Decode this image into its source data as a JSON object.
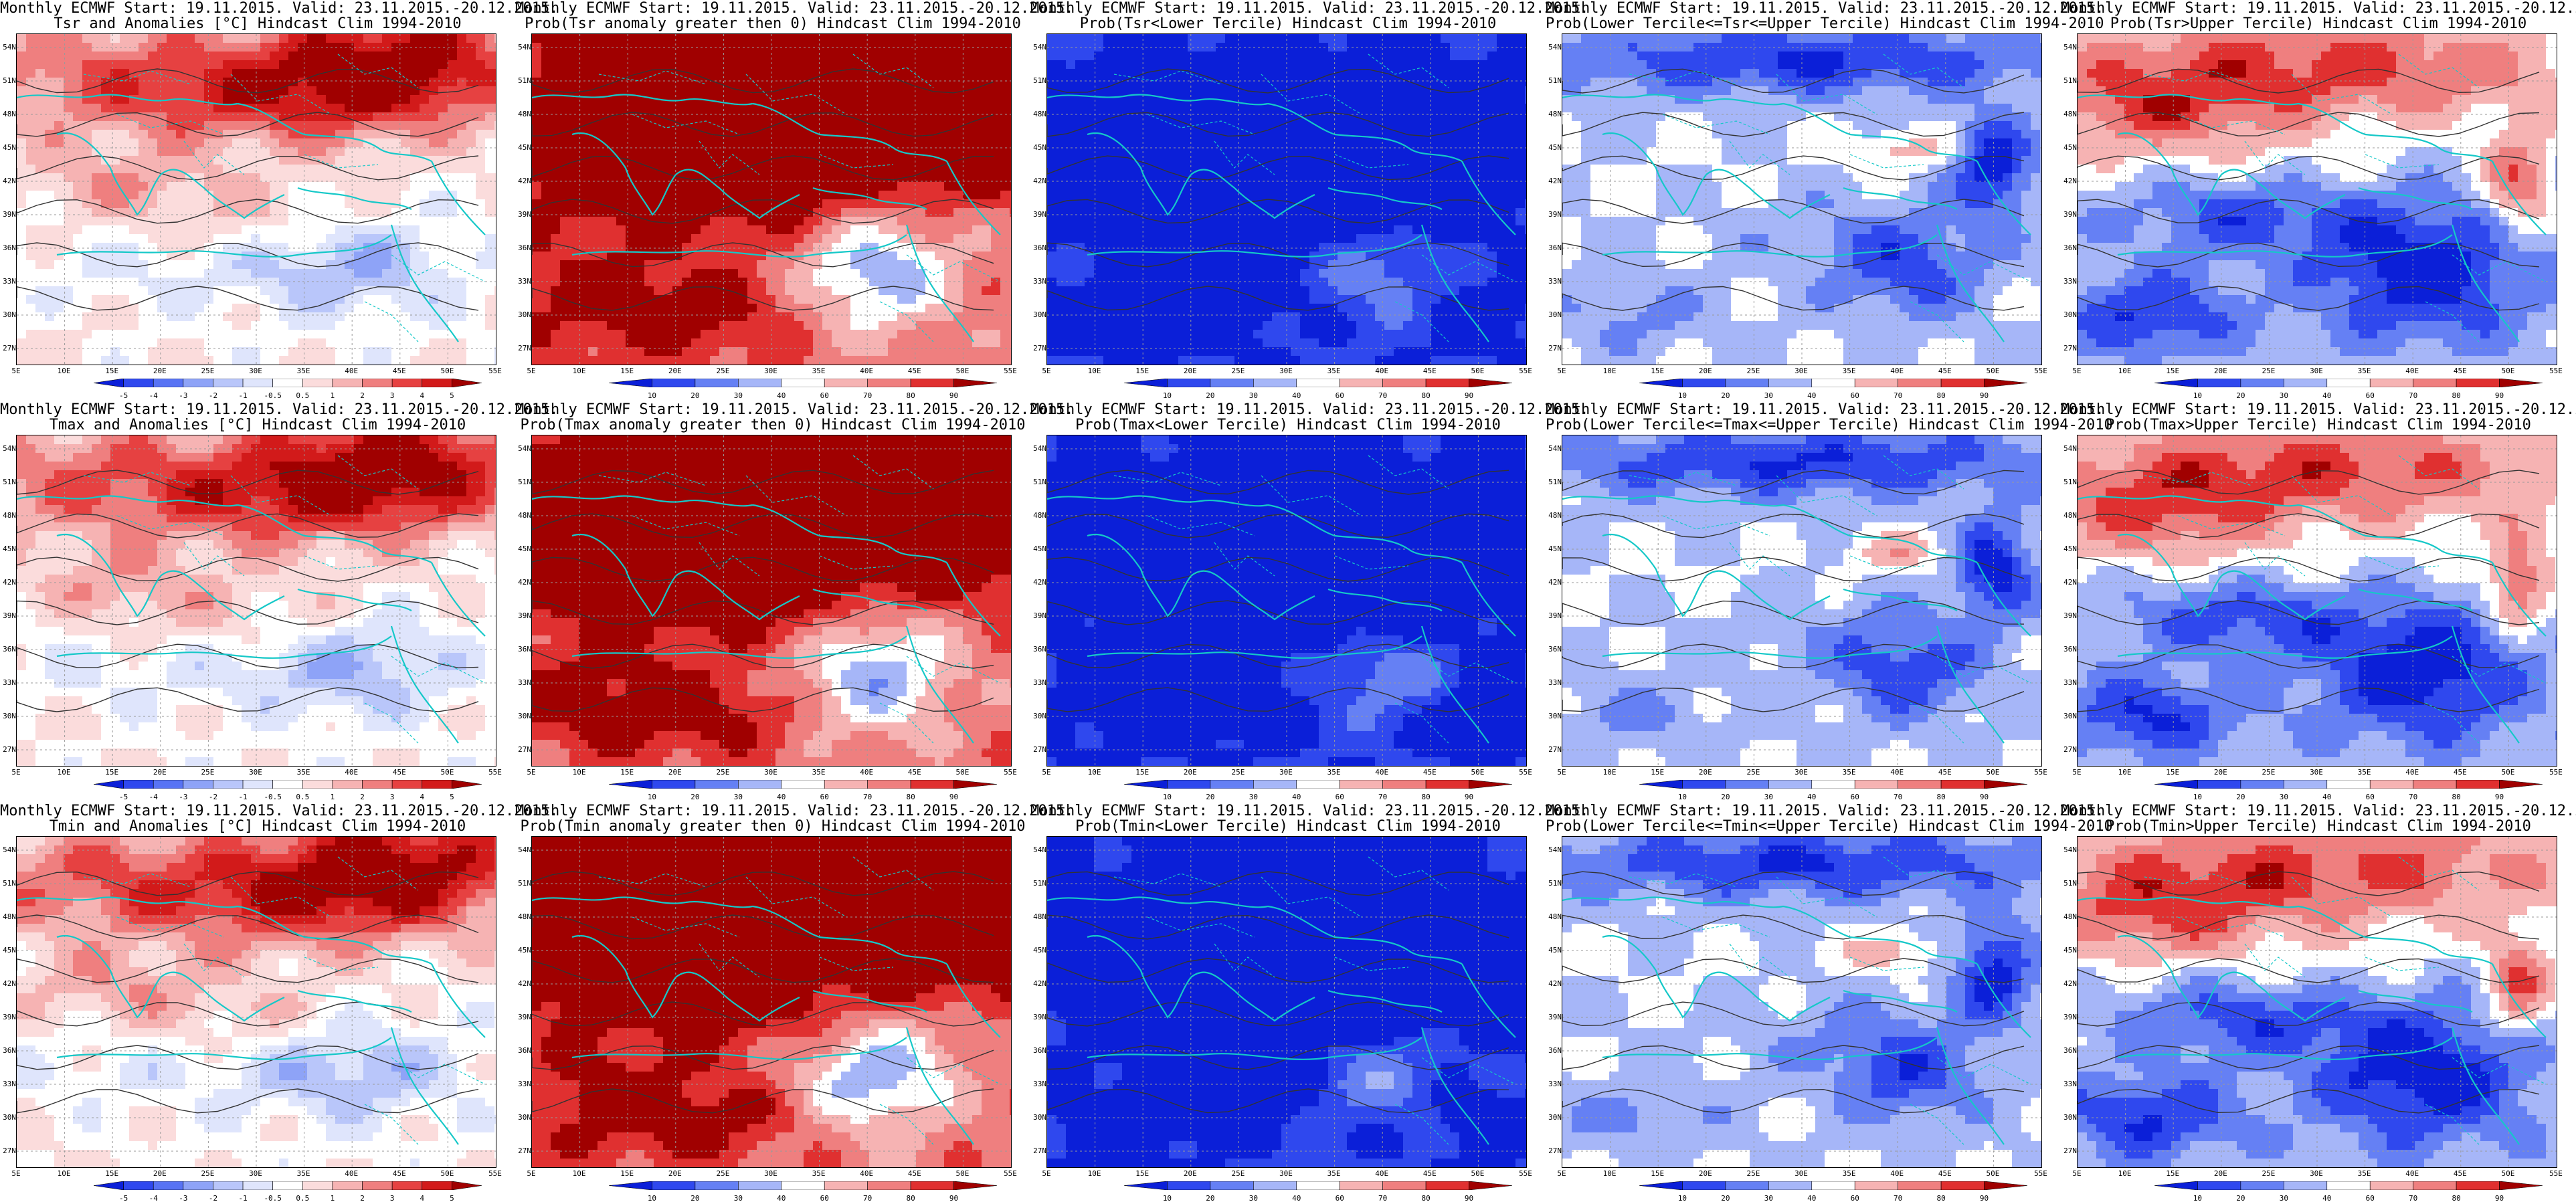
{
  "common": {
    "header": "Monthly ECMWF Start: 19.11.2015. Valid: 23.11.2015.-20.12.2015.",
    "lat_labels": [
      "54N",
      "51N",
      "48N",
      "45N",
      "42N",
      "39N",
      "36N",
      "33N",
      "30N",
      "27N"
    ],
    "lon_labels": [
      "5E",
      "10E",
      "15E",
      "20E",
      "25E",
      "30E",
      "35E",
      "40E",
      "45E",
      "50E",
      "55E"
    ]
  },
  "scales": {
    "anom": {
      "labels": [
        "-5",
        "-4",
        "-3",
        "-2",
        "-1",
        "-0.5",
        "0.5",
        "1",
        "2",
        "3",
        "4",
        "5"
      ],
      "colors": [
        "#0b1fd8",
        "#2f48ee",
        "#5873f4",
        "#8ea3f7",
        "#b9c6fa",
        "#dfe5fc",
        "#ffffff",
        "#fbdcdc",
        "#f6b3b3",
        "#ef7f7f",
        "#e64141",
        "#d21a1a",
        "#a00000"
      ]
    },
    "prob": {
      "labels": [
        "10",
        "20",
        "30",
        "40",
        "60",
        "70",
        "80",
        "90"
      ],
      "colors": [
        "#0b1fd8",
        "#2f48ee",
        "#6580f4",
        "#a6b6f8",
        "#ffffff",
        "#f6b3b3",
        "#ef7f7f",
        "#e03030",
        "#a00000"
      ]
    }
  },
  "panels": [
    {
      "line2": "Tsr and Anomalies [°C] Hindcast Clim 1994-2010",
      "scale": "anom",
      "pattern": "anom"
    },
    {
      "line2": "Prob(Tsr anomaly greater then 0) Hindcast Clim 1994-2010",
      "scale": "prob",
      "pattern": "hot"
    },
    {
      "line2": "Prob(Tsr<Lower Tercile) Hindcast Clim 1994-2010",
      "scale": "prob",
      "pattern": "cold"
    },
    {
      "line2": "Prob(Lower Tercile<=Tsr<=Upper Tercile) Hindcast Clim 1994-2010",
      "scale": "prob",
      "pattern": "mid"
    },
    {
      "line2": "Prob(Tsr>Upper Tercile) Hindcast Clim 1994-2010",
      "scale": "prob",
      "pattern": "upper"
    },
    {
      "line2": "Tmax and Anomalies [°C] Hindcast Clim 1994-2010",
      "scale": "anom",
      "pattern": "anom"
    },
    {
      "line2": "Prob(Tmax anomaly greater then 0) Hindcast Clim 1994-2010",
      "scale": "prob",
      "pattern": "hot"
    },
    {
      "line2": "Prob(Tmax<Lower Tercile) Hindcast Clim 1994-2010",
      "scale": "prob",
      "pattern": "cold"
    },
    {
      "line2": "Prob(Lower Tercile<=Tmax<=Upper Tercile) Hindcast Clim 1994-2010",
      "scale": "prob",
      "pattern": "mid"
    },
    {
      "line2": "Prob(Tmax>Upper Tercile) Hindcast Clim 1994-2010",
      "scale": "prob",
      "pattern": "upper"
    },
    {
      "line2": "Tmin and Anomalies [°C] Hindcast Clim 1994-2010",
      "scale": "anom",
      "pattern": "anom"
    },
    {
      "line2": "Prob(Tmin anomaly greater then 0) Hindcast Clim 1994-2010",
      "scale": "prob",
      "pattern": "hot"
    },
    {
      "line2": "Prob(Tmin<Lower Tercile) Hindcast Clim 1994-2010",
      "scale": "prob",
      "pattern": "cold"
    },
    {
      "line2": "Prob(Lower Tercile<=Tmin<=Upper Tercile) Hindcast Clim 1994-2010",
      "scale": "prob",
      "pattern": "mid"
    },
    {
      "line2": "Prob(Tmin>Upper Tercile) Hindcast Clim 1994-2010",
      "scale": "prob",
      "pattern": "upper"
    }
  ]
}
